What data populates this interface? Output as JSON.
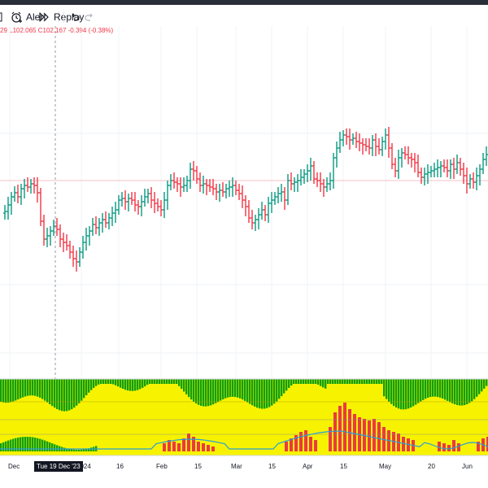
{
  "toolbar": {
    "alert_label": "Alert",
    "replay_label": "Replay"
  },
  "legend": {
    "text": "29 L102.065 C102.167 -0.394 (-0.38%)"
  },
  "xaxis": {
    "labels": [
      "Dec",
      "2024",
      "16",
      "Feb",
      "15",
      "Mar",
      "15",
      "Apr",
      "15",
      "May",
      "20",
      "Jun"
    ],
    "crosshair_label": "Tue 19 Dec '23"
  },
  "colors": {
    "up": "#089981",
    "down": "#f23645",
    "osc_green": "#10a010",
    "osc_yellow": "#f7f300",
    "osc_red": "#ea3a43",
    "osc_line": "#2a9fd6"
  }
}
